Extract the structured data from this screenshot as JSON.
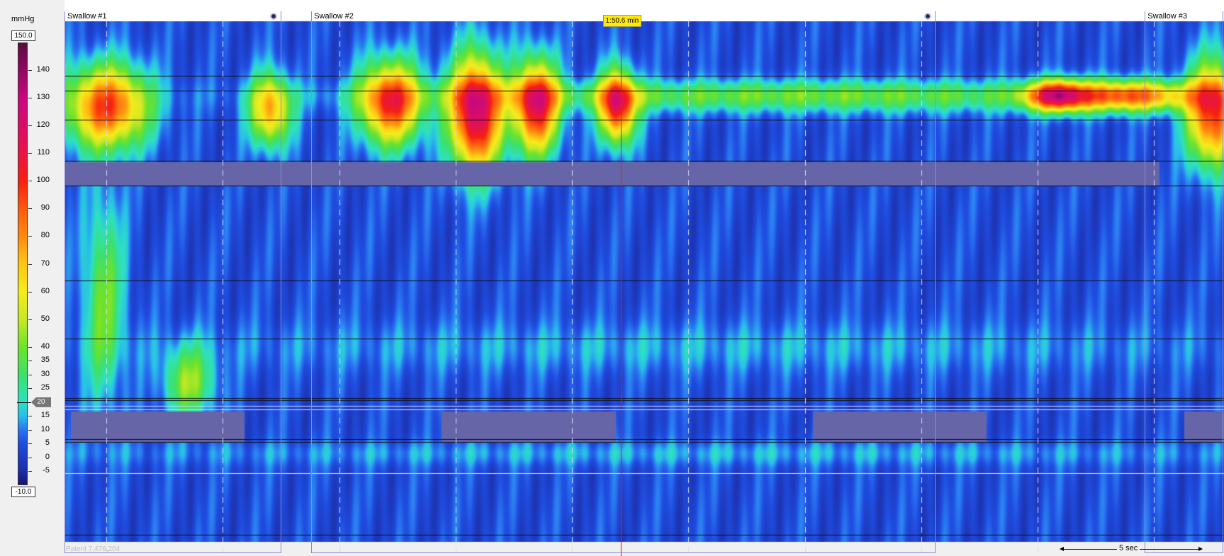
{
  "chart_data": {
    "type": "heatmap",
    "unit": "mmHg",
    "scale_max_display": "150.0",
    "scale_min_display": "-10.0",
    "zlim": [
      -10,
      150
    ],
    "colorbar_ticks": [
      "140",
      "130",
      "120",
      "110",
      "100",
      "90",
      "80",
      "70",
      "60",
      "50",
      "40",
      "35",
      "30",
      "25",
      "15",
      "10",
      "5",
      "0",
      "-5"
    ],
    "colorbar_tick_values": [
      140,
      130,
      120,
      110,
      100,
      90,
      80,
      70,
      60,
      50,
      40,
      35,
      30,
      25,
      15,
      10,
      5,
      0,
      -5
    ],
    "threshold_value": "20",
    "threshold_numeric": 20,
    "colorbar_stops": [
      {
        "value": -10,
        "color": "#1a1470"
      },
      {
        "value": -5,
        "color": "#1c2ea8"
      },
      {
        "value": 5,
        "color": "#1f4de0"
      },
      {
        "value": 10,
        "color": "#2a78f0"
      },
      {
        "value": 15,
        "color": "#28c0e8"
      },
      {
        "value": 20,
        "color": "#2ee0c0"
      },
      {
        "value": 30,
        "color": "#3ee06a"
      },
      {
        "value": 40,
        "color": "#6ee32a"
      },
      {
        "value": 50,
        "color": "#c8e828"
      },
      {
        "value": 60,
        "color": "#f5ec1a"
      },
      {
        "value": 70,
        "color": "#ffc515"
      },
      {
        "value": 80,
        "color": "#ff8a10"
      },
      {
        "value": 90,
        "color": "#ff5a0e"
      },
      {
        "value": 100,
        "color": "#f52012"
      },
      {
        "value": 115,
        "color": "#e0105a"
      },
      {
        "value": 130,
        "color": "#c80880"
      },
      {
        "value": 150,
        "color": "#5a0a40"
      }
    ],
    "swallows": [
      {
        "label": "Swallow #1",
        "start_s": -1.8,
        "end_s": 7.5,
        "handle": true
      },
      {
        "label": "Swallow #2",
        "start_s": 8.8,
        "end_s": 35.6,
        "handle": true
      },
      {
        "label": "Swallow #3",
        "start_s": 44.6,
        "end_s": 48.0,
        "handle": false
      }
    ],
    "time_window_s": [
      -1.8,
      48.0
    ],
    "cursor_time_s": 22.1,
    "cursor_label": "1:50.6 min",
    "scale_bar_s": 5,
    "scale_bar_label": "5 sec",
    "colors": {
      "background": "#1f3fb8",
      "below_threshold_fill": "#6565a8",
      "swallow_box": "#8a8ad8",
      "cursor": "#e02020",
      "gridline": "#d8d8ff",
      "sensor_line": "#101010"
    }
  },
  "footer": {
    "patent_text": "Patent 7,476,204"
  }
}
